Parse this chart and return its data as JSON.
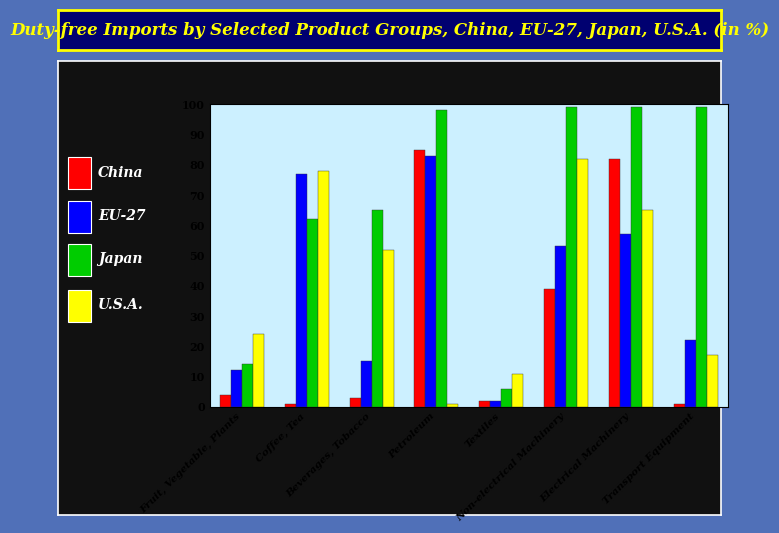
{
  "title": "Duty-free Imports by Selected Product Groups, China, EU-27, Japan, U.S.A. (in %)",
  "categories": [
    "Fruit, Vegetable, Plants",
    "Coffee, Tea",
    "Beverages, Tobacco",
    "Petroleum",
    "Textiles",
    "Non-electrical Machinery",
    "Electrical Machinery",
    "Transport Equipment"
  ],
  "series": {
    "China": [
      4,
      1,
      3,
      85,
      2,
      39,
      82,
      1
    ],
    "EU-27": [
      12,
      77,
      15,
      83,
      2,
      53,
      57,
      22
    ],
    "Japan": [
      14,
      62,
      65,
      98,
      6,
      99,
      99,
      99
    ],
    "U.S.A.": [
      24,
      78,
      52,
      1,
      11,
      82,
      65,
      17
    ]
  },
  "colors": {
    "China": "#FF0000",
    "EU-27": "#0000FF",
    "Japan": "#00CC00",
    "U.S.A.": "#FFFF00"
  },
  "ylim": [
    0,
    100
  ],
  "yticks": [
    0,
    10,
    20,
    30,
    40,
    50,
    60,
    70,
    80,
    90,
    100
  ],
  "bg_outer": "#5070B8",
  "bg_chart_outer": "#111111",
  "bg_plot": "#CCF0FF",
  "title_bg": "#000070",
  "title_color": "#FFFF00",
  "title_border": "#FFFF00",
  "title_fontsize": 12,
  "legend_fontsize": 10,
  "tick_fontsize": 8,
  "xtick_fontsize": 7.5
}
